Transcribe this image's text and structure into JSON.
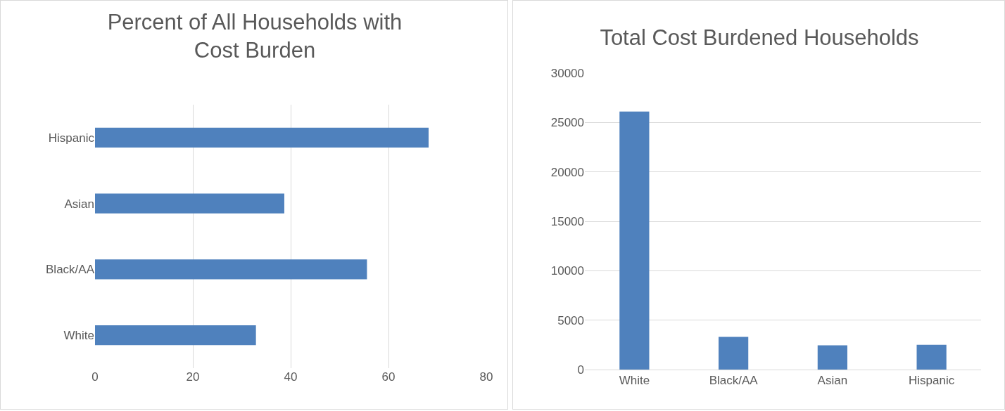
{
  "chart_data": [
    {
      "type": "bar",
      "title": "Percent of All Households with Cost Burden",
      "orientation": "horizontal",
      "categories": [
        "Hispanic",
        "Asian",
        "Black/AA",
        "White"
      ],
      "values": [
        68.2,
        38.7,
        55.6,
        32.9
      ],
      "color": "#4f81bd",
      "xlim": [
        0,
        80
      ],
      "xticks": [
        0,
        20,
        40,
        60,
        80
      ],
      "grid": "x"
    },
    {
      "type": "bar",
      "title": "Total Cost Burdened Households",
      "categories": [
        "White",
        "Black/AA",
        "Asian",
        "Hispanic"
      ],
      "values": [
        26100,
        3300,
        2450,
        2500
      ],
      "color": "#4f81bd",
      "ylim": [
        0,
        30000
      ],
      "yticks": [
        0,
        5000,
        10000,
        15000,
        20000,
        25000,
        30000
      ],
      "grid": "y"
    }
  ]
}
